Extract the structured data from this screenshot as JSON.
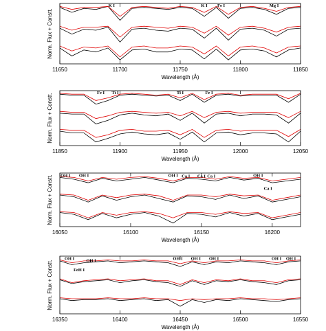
{
  "chart_data": [
    {
      "type": "line",
      "xlabel": "Wavelength (Å)",
      "ylabel": "Norm. Flux + Constt.",
      "xlim": [
        11650,
        11850
      ],
      "xticks": [
        11650,
        11700,
        11750,
        11800,
        11850
      ],
      "ylim": [
        0.1,
        3.15
      ],
      "x": [
        11650,
        11660,
        11670,
        11680,
        11690,
        11700,
        11710,
        11720,
        11730,
        11740,
        11750,
        11760,
        11770,
        11780,
        11790,
        11800,
        11810,
        11820,
        11830,
        11840,
        11850
      ],
      "series": [
        {
          "color": "#000000",
          "values": [
            2.95,
            2.7,
            2.9,
            2.85,
            3.0,
            2.3,
            2.9,
            2.95,
            2.9,
            2.85,
            2.95,
            2.9,
            2.5,
            2.95,
            2.4,
            2.9,
            2.95,
            2.85,
            2.6,
            2.9,
            2.95
          ]
        },
        {
          "color": "#e00000",
          "values": [
            3.0,
            2.85,
            2.95,
            2.95,
            3.0,
            2.5,
            2.95,
            3.0,
            2.95,
            2.9,
            3.0,
            2.95,
            2.7,
            3.0,
            2.6,
            2.95,
            3.0,
            2.9,
            2.75,
            2.95,
            3.0
          ]
        },
        {
          "color": "#000000",
          "values": [
            1.9,
            1.6,
            1.85,
            1.8,
            1.95,
            1.2,
            1.85,
            1.9,
            1.8,
            1.75,
            1.9,
            1.85,
            1.4,
            1.9,
            1.3,
            1.85,
            1.9,
            1.8,
            1.5,
            1.85,
            1.9
          ]
        },
        {
          "color": "#e00000",
          "values": [
            2.0,
            1.8,
            1.95,
            1.95,
            2.0,
            1.45,
            1.95,
            2.0,
            1.95,
            1.9,
            2.0,
            1.95,
            1.65,
            2.0,
            1.55,
            1.95,
            2.0,
            1.9,
            1.7,
            1.95,
            2.0
          ]
        },
        {
          "color": "#000000",
          "values": [
            0.9,
            0.5,
            0.8,
            0.7,
            0.9,
            0.3,
            0.8,
            0.85,
            0.7,
            0.7,
            0.85,
            0.8,
            0.35,
            0.85,
            0.3,
            0.8,
            0.85,
            0.75,
            0.45,
            0.8,
            0.9
          ]
        },
        {
          "color": "#e00000",
          "values": [
            1.0,
            0.75,
            0.95,
            0.9,
            1.0,
            0.45,
            0.95,
            1.0,
            0.9,
            0.9,
            1.0,
            0.95,
            0.6,
            1.0,
            0.5,
            0.95,
            1.0,
            0.9,
            0.65,
            0.95,
            1.0
          ]
        }
      ],
      "annotations": [
        {
          "text": "K I",
          "x": 11693,
          "y": 3.02
        },
        {
          "text": "K I",
          "x": 11770,
          "y": 3.02
        },
        {
          "text": "Fe I",
          "x": 11784,
          "y": 3.02
        },
        {
          "text": "Mg I",
          "x": 11828,
          "y": 3.02
        }
      ]
    },
    {
      "type": "line",
      "xlabel": "Wavelength (Å)",
      "ylabel": "Norm. Flux + Constt.",
      "xlim": [
        11850,
        12050
      ],
      "xticks": [
        11850,
        11900,
        11950,
        12000,
        12050
      ],
      "ylim": [
        0.1,
        3.15
      ],
      "x": [
        11850,
        11860,
        11870,
        11880,
        11890,
        11900,
        11910,
        11920,
        11930,
        11940,
        11950,
        11960,
        11970,
        11980,
        11990,
        12000,
        12010,
        12020,
        12030,
        12040,
        12050
      ],
      "series": [
        {
          "color": "#000000",
          "values": [
            2.95,
            2.9,
            2.9,
            2.4,
            2.6,
            2.9,
            2.95,
            2.9,
            2.85,
            2.9,
            2.6,
            2.95,
            2.5,
            2.9,
            2.95,
            2.85,
            2.9,
            2.9,
            2.9,
            2.5,
            2.95
          ]
        },
        {
          "color": "#e00000",
          "values": [
            3.0,
            2.95,
            2.95,
            2.6,
            2.75,
            2.95,
            3.0,
            2.95,
            2.9,
            2.95,
            2.75,
            3.0,
            2.65,
            2.95,
            3.0,
            2.9,
            2.95,
            2.95,
            2.95,
            2.7,
            3.0
          ]
        },
        {
          "color": "#000000",
          "values": [
            1.9,
            1.85,
            1.85,
            1.3,
            1.5,
            1.8,
            1.9,
            1.8,
            1.75,
            1.85,
            1.5,
            1.9,
            1.35,
            1.85,
            1.9,
            1.75,
            1.85,
            1.85,
            1.8,
            1.35,
            1.9
          ]
        },
        {
          "color": "#e00000",
          "values": [
            2.0,
            1.95,
            1.95,
            1.6,
            1.75,
            1.95,
            2.0,
            1.95,
            1.9,
            1.95,
            1.75,
            2.0,
            1.65,
            1.95,
            2.0,
            1.9,
            1.95,
            1.95,
            1.95,
            1.65,
            2.0
          ]
        },
        {
          "color": "#000000",
          "values": [
            0.9,
            0.8,
            0.8,
            0.3,
            0.5,
            0.75,
            0.85,
            0.75,
            0.7,
            0.8,
            0.45,
            0.85,
            0.3,
            0.8,
            0.85,
            0.7,
            0.8,
            0.8,
            0.75,
            0.3,
            0.9
          ]
        },
        {
          "color": "#e00000",
          "values": [
            1.0,
            0.95,
            0.95,
            0.55,
            0.7,
            0.95,
            1.0,
            0.9,
            0.9,
            0.95,
            0.7,
            1.0,
            0.55,
            0.95,
            1.0,
            0.9,
            0.95,
            0.95,
            0.95,
            0.6,
            1.0
          ]
        }
      ],
      "annotations": [
        {
          "text": "Fe I",
          "x": 11884,
          "y": 3.02
        },
        {
          "text": "Ti I",
          "x": 11896,
          "y": 3.02
        },
        {
          "text": "Ti I",
          "x": 11950,
          "y": 3.02
        },
        {
          "text": "Fe I",
          "x": 11974,
          "y": 3.02
        }
      ]
    },
    {
      "type": "line",
      "xlabel": "Wavelength (Å)",
      "ylabel": "Norm. Flux + Constt.",
      "xlim": [
        16050,
        16220
      ],
      "xticks": [
        16050,
        16100,
        16150,
        16200
      ],
      "ylim": [
        0.1,
        3.15
      ],
      "x": [
        16050,
        16060,
        16070,
        16080,
        16090,
        16100,
        16110,
        16120,
        16130,
        16140,
        16150,
        16160,
        16170,
        16180,
        16190,
        16200,
        16210,
        16220
      ],
      "series": [
        {
          "color": "#000000",
          "values": [
            2.9,
            2.8,
            2.6,
            2.85,
            2.7,
            2.8,
            2.9,
            2.75,
            2.6,
            2.85,
            2.8,
            2.7,
            2.9,
            2.75,
            2.85,
            2.6,
            2.7,
            2.8
          ]
        },
        {
          "color": "#e00000",
          "values": [
            2.95,
            2.9,
            2.7,
            2.9,
            2.8,
            2.9,
            2.95,
            2.85,
            2.7,
            2.9,
            2.9,
            2.8,
            2.95,
            2.85,
            2.9,
            2.7,
            2.8,
            2.9
          ]
        },
        {
          "color": "#000000",
          "values": [
            1.9,
            1.8,
            1.5,
            1.85,
            1.6,
            1.8,
            1.9,
            1.7,
            1.5,
            1.85,
            1.8,
            1.65,
            1.9,
            1.7,
            1.85,
            1.5,
            1.65,
            1.8
          ]
        },
        {
          "color": "#e00000",
          "values": [
            1.95,
            1.9,
            1.6,
            1.9,
            1.75,
            1.9,
            1.95,
            1.85,
            1.6,
            1.9,
            1.9,
            1.8,
            1.95,
            1.85,
            1.9,
            1.6,
            1.75,
            1.9
          ]
        },
        {
          "color": "#000000",
          "values": [
            0.9,
            0.8,
            0.5,
            0.85,
            0.6,
            0.8,
            0.9,
            0.7,
            0.3,
            0.85,
            0.8,
            0.65,
            0.9,
            0.7,
            0.85,
            0.5,
            0.65,
            0.8
          ]
        },
        {
          "color": "#e00000",
          "values": [
            0.95,
            0.9,
            0.6,
            0.9,
            0.75,
            0.9,
            0.95,
            0.85,
            0.6,
            0.9,
            0.9,
            0.8,
            0.95,
            0.85,
            0.9,
            0.6,
            0.75,
            0.9
          ]
        }
      ],
      "annotations": [
        {
          "text": "OH I",
          "x": 16054,
          "y": 3.0
        },
        {
          "text": "OH I",
          "x": 16067,
          "y": 3.0
        },
        {
          "text": "OH I",
          "x": 16130,
          "y": 3.0
        },
        {
          "text": "Ca I",
          "x": 16139,
          "y": 2.95
        },
        {
          "text": "Ca I",
          "x": 16150,
          "y": 2.95
        },
        {
          "text": "Ca I",
          "x": 16157,
          "y": 2.95
        },
        {
          "text": "OH I",
          "x": 16190,
          "y": 3.0
        },
        {
          "text": "Ca I",
          "x": 16197,
          "y": 2.25
        }
      ]
    },
    {
      "type": "line",
      "xlabel": "Wavelength (Å)",
      "ylabel": "Norm. Flux + Constt.",
      "xlim": [
        16350,
        16550
      ],
      "xticks": [
        16350,
        16400,
        16450,
        16500,
        16550
      ],
      "ylim": [
        0.1,
        3.15
      ],
      "x": [
        16350,
        16360,
        16370,
        16380,
        16390,
        16400,
        16410,
        16420,
        16430,
        16440,
        16450,
        16460,
        16470,
        16480,
        16490,
        16500,
        16510,
        16520,
        16530,
        16540,
        16550
      ],
      "series": [
        {
          "color": "#000000",
          "values": [
            2.9,
            2.7,
            2.8,
            2.85,
            2.9,
            2.8,
            2.85,
            2.9,
            2.85,
            2.8,
            2.6,
            2.85,
            2.7,
            2.85,
            2.8,
            2.9,
            2.85,
            2.8,
            2.7,
            2.85,
            2.9
          ]
        },
        {
          "color": "#e00000",
          "values": [
            2.95,
            2.8,
            2.9,
            2.9,
            2.95,
            2.9,
            2.9,
            2.95,
            2.9,
            2.9,
            2.75,
            2.9,
            2.8,
            2.9,
            2.9,
            2.95,
            2.9,
            2.9,
            2.8,
            2.9,
            2.95
          ]
        },
        {
          "color": "#000000",
          "values": [
            1.9,
            1.7,
            1.8,
            1.85,
            1.9,
            1.75,
            1.85,
            1.9,
            1.8,
            1.75,
            1.55,
            1.85,
            1.65,
            1.85,
            1.8,
            1.9,
            1.8,
            1.75,
            1.65,
            1.85,
            1.9
          ]
        },
        {
          "color": "#e00000",
          "values": [
            1.95,
            1.75,
            1.85,
            1.9,
            1.95,
            1.85,
            1.9,
            1.95,
            1.85,
            1.85,
            1.65,
            1.9,
            1.75,
            1.9,
            1.85,
            1.95,
            1.85,
            1.85,
            1.75,
            1.9,
            1.95
          ]
        },
        {
          "color": "#000000",
          "values": [
            0.9,
            0.8,
            0.85,
            0.85,
            0.9,
            0.8,
            0.85,
            0.9,
            0.8,
            0.85,
            0.5,
            0.85,
            0.7,
            0.85,
            0.8,
            0.9,
            0.85,
            0.8,
            0.75,
            0.85,
            0.9
          ]
        },
        {
          "color": "#e00000",
          "values": [
            0.95,
            0.9,
            0.9,
            0.9,
            0.95,
            0.9,
            0.9,
            0.95,
            0.9,
            0.9,
            0.8,
            0.9,
            0.85,
            0.9,
            0.9,
            0.95,
            0.9,
            0.9,
            0.85,
            0.9,
            0.95
          ]
        }
      ],
      "annotations": [
        {
          "text": "OH I",
          "x": 16358,
          "y": 3.0
        },
        {
          "text": "OH I",
          "x": 16376,
          "y": 2.9
        },
        {
          "text": "FeH I",
          "x": 16366,
          "y": 2.4
        },
        {
          "text": "OH I",
          "x": 16448,
          "y": 3.0
        },
        {
          "text": "OH I",
          "x": 16463,
          "y": 3.0
        },
        {
          "text": "OH I",
          "x": 16478,
          "y": 3.0
        },
        {
          "text": "OH I",
          "x": 16530,
          "y": 3.0
        },
        {
          "text": "OH I",
          "x": 16542,
          "y": 3.0
        }
      ]
    }
  ]
}
